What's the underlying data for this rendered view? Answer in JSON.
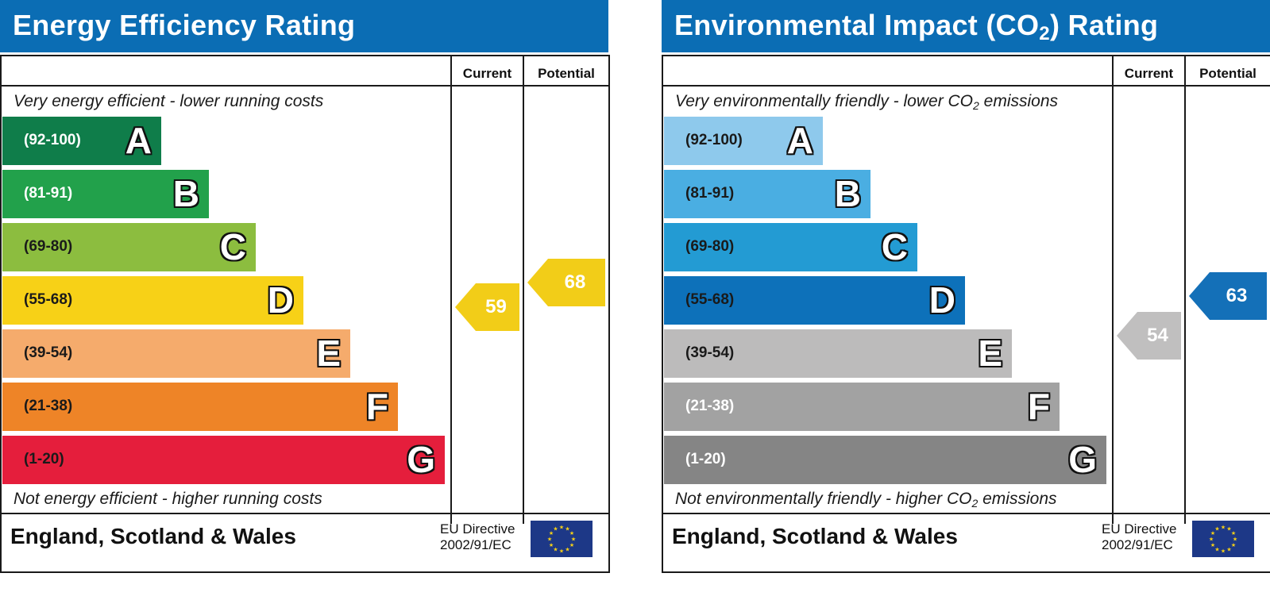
{
  "chart_data": [
    {
      "type": "bar",
      "title": "Energy Efficiency Rating",
      "columns": [
        "Current",
        "Potential"
      ],
      "top_note": "Very energy efficient - lower running costs",
      "bottom_note": "Not energy efficient - higher running costs",
      "bands": [
        {
          "range": "(92-100)",
          "letter": "A",
          "color": "#0f7d4a",
          "text_color": "#ffffff"
        },
        {
          "range": "(81-91)",
          "letter": "B",
          "color": "#22a14b",
          "text_color": "#ffffff"
        },
        {
          "range": "(69-80)",
          "letter": "C",
          "color": "#8cbd3f",
          "text_color": "#1a1a1a"
        },
        {
          "range": "(55-68)",
          "letter": "D",
          "color": "#f7d117",
          "text_color": "#1a1a1a"
        },
        {
          "range": "(39-54)",
          "letter": "E",
          "color": "#f5ab6c",
          "text_color": "#1a1a1a"
        },
        {
          "range": "(21-38)",
          "letter": "F",
          "color": "#ee8427",
          "text_color": "#1a1a1a"
        },
        {
          "range": "(1-20)",
          "letter": "G",
          "color": "#e51e3c",
          "text_color": "#1a1a1a"
        }
      ],
      "current": {
        "value": 59,
        "color": "#f2cd18"
      },
      "potential": {
        "value": 68,
        "color": "#f2cd18"
      },
      "footer": {
        "region": "England, Scotland & Wales",
        "directive_line1": "EU Directive",
        "directive_line2": "2002/91/EC"
      }
    },
    {
      "type": "bar",
      "title": "Environmental Impact (CO2) Rating",
      "title_parts": [
        "Environmental Impact (CO",
        "2",
        ") Rating"
      ],
      "columns": [
        "Current",
        "Potential"
      ],
      "top_note": "Very environmentally friendly - lower CO2 emissions",
      "top_note_parts": [
        "Very environmentally friendly - lower CO",
        "2",
        " emissions"
      ],
      "bottom_note": "Not environmentally friendly - higher CO2 emissions",
      "bottom_note_parts": [
        "Not environmentally friendly - higher CO",
        "2",
        " emissions"
      ],
      "bands": [
        {
          "range": "(92-100)",
          "letter": "A",
          "color": "#8ec9ec",
          "text_color": "#1a1a1a"
        },
        {
          "range": "(81-91)",
          "letter": "B",
          "color": "#4aaee2",
          "text_color": "#1a1a1a"
        },
        {
          "range": "(69-80)",
          "letter": "C",
          "color": "#239bd3",
          "text_color": "#1a1a1a"
        },
        {
          "range": "(55-68)",
          "letter": "D",
          "color": "#0d71ba",
          "text_color": "#1a1a1a"
        },
        {
          "range": "(39-54)",
          "letter": "E",
          "color": "#bcbbbb",
          "text_color": "#1a1a1a"
        },
        {
          "range": "(21-38)",
          "letter": "F",
          "color": "#a2a2a2",
          "text_color": "#ffffff"
        },
        {
          "range": "(1-20)",
          "letter": "G",
          "color": "#858585",
          "text_color": "#ffffff"
        }
      ],
      "current": {
        "value": 54,
        "color": "#c0bfbf"
      },
      "potential": {
        "value": 63,
        "color": "#1470b8"
      },
      "footer": {
        "region": "England, Scotland & Wales",
        "directive_line1": "EU Directive",
        "directive_line2": "2002/91/EC"
      }
    }
  ],
  "colors": {
    "header_blue": "#0b6db4",
    "eu_flag_blue": "#1d3887",
    "eu_flag_star": "#f7d117"
  },
  "icons": {
    "eu_flag": "eu-flag-icon"
  }
}
